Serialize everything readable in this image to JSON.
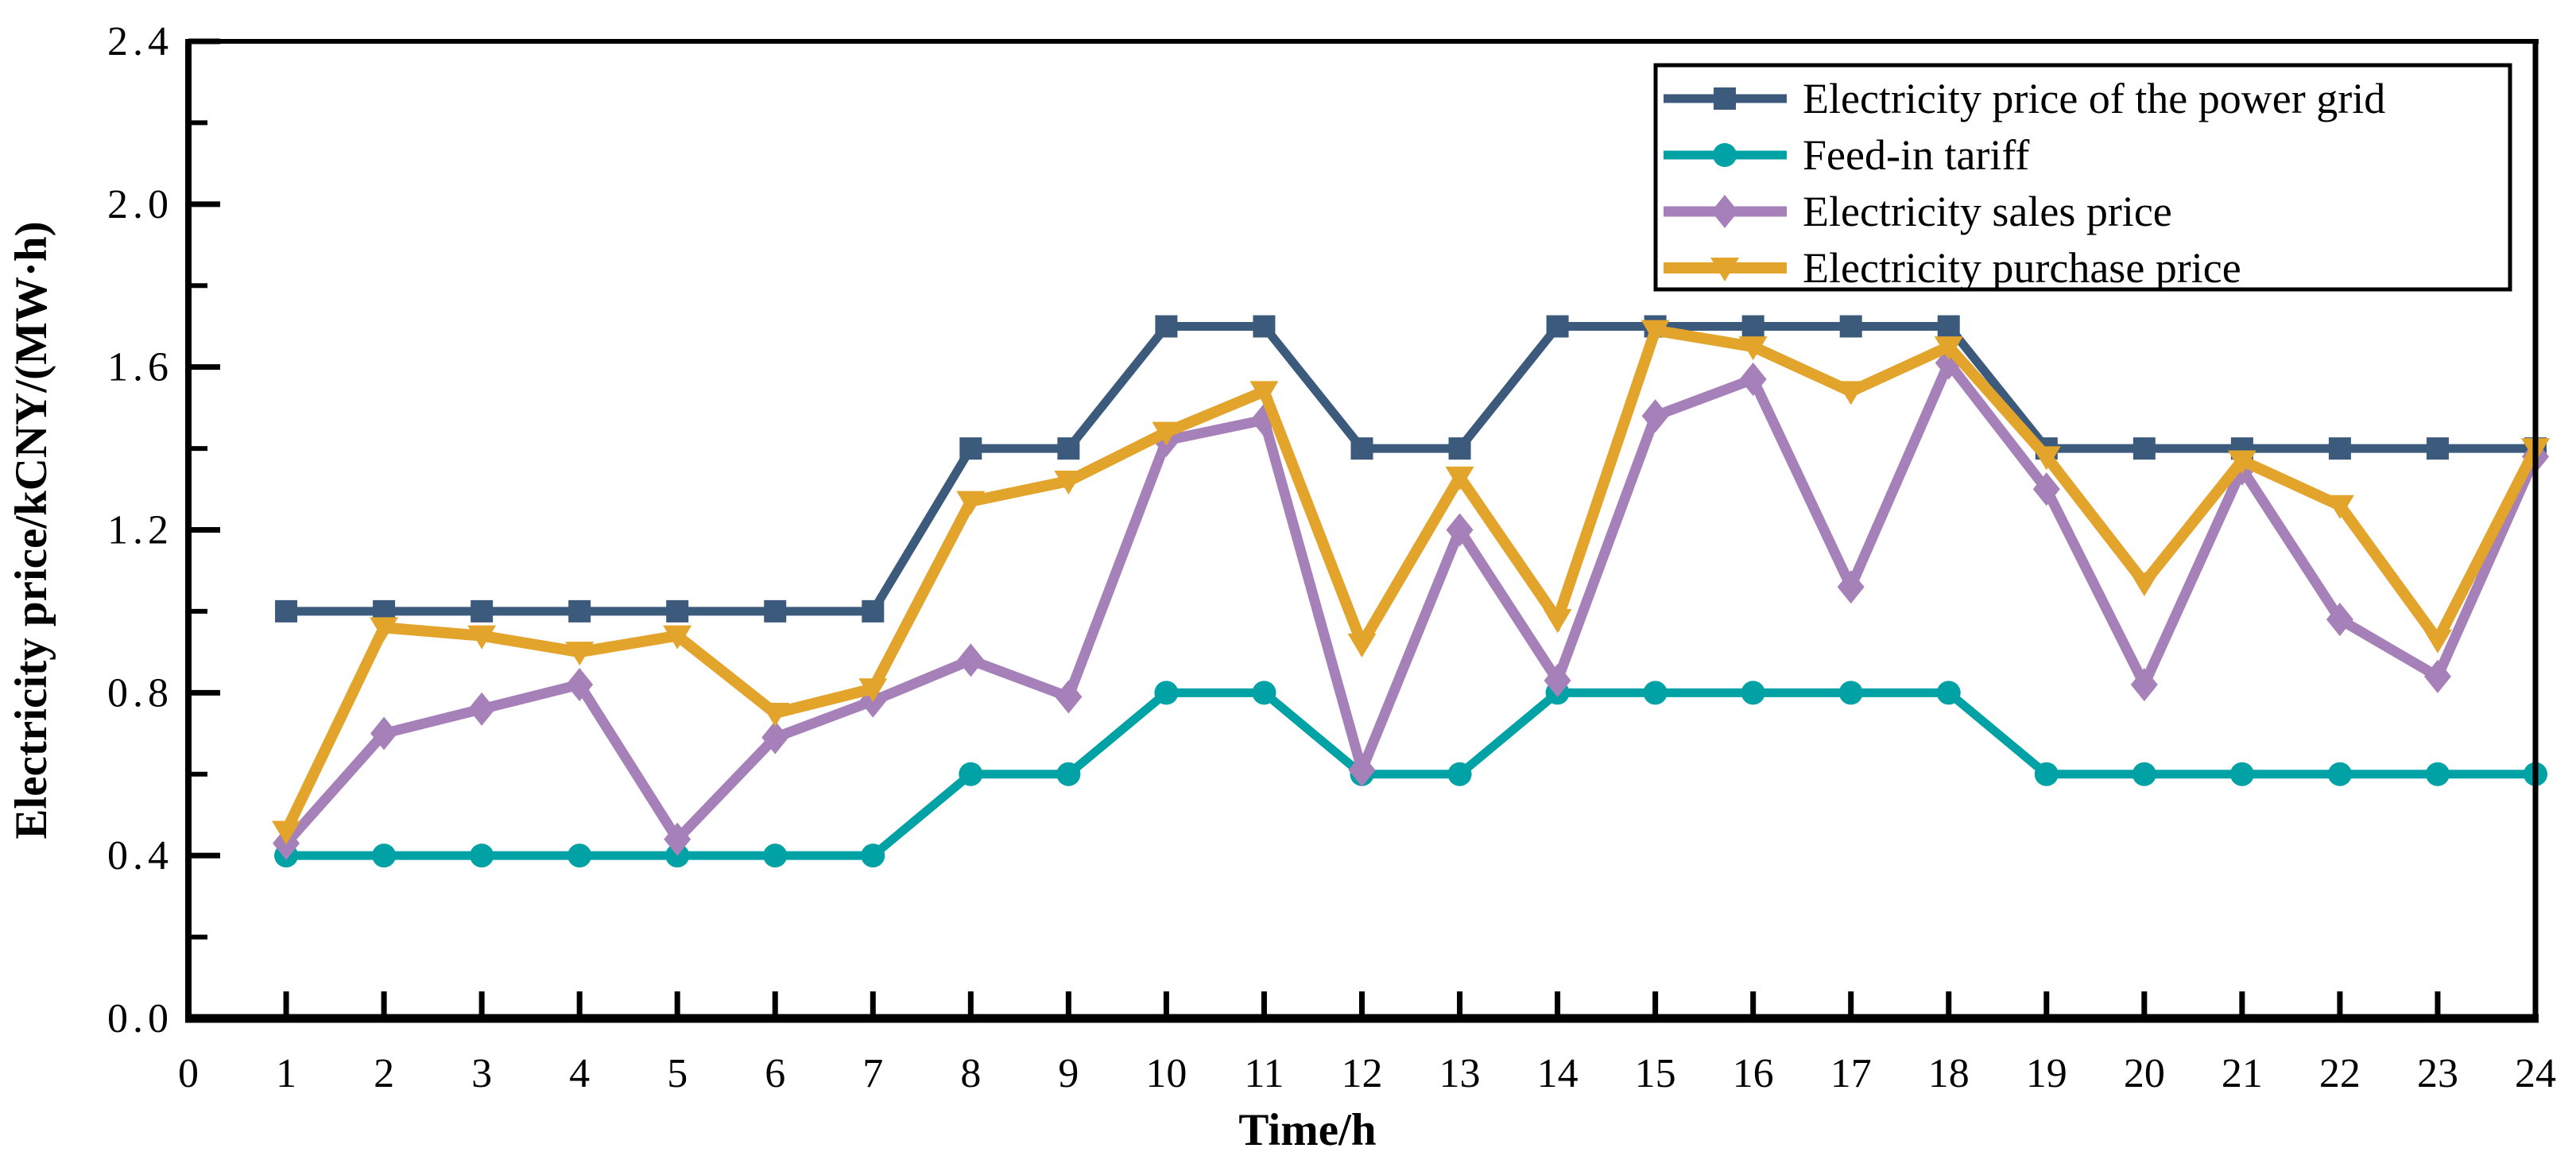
{
  "chart_data": {
    "type": "line",
    "title": "",
    "xlabel": "Time/h",
    "ylabel": "Electricity price/kCNY/(MW·h)",
    "xlim": [
      0,
      24
    ],
    "ylim": [
      0,
      2.4
    ],
    "x_tick_labels": [
      "0",
      "1",
      "2",
      "3",
      "4",
      "5",
      "6",
      "7",
      "8",
      "9",
      "10",
      "11",
      "12",
      "13",
      "14",
      "15",
      "16",
      "17",
      "18",
      "19",
      "20",
      "21",
      "22",
      "23",
      "24"
    ],
    "y_tick_labels": [
      "0.0",
      "0.4",
      "0.8",
      "1.2",
      "1.6",
      "2.0",
      "2.4"
    ],
    "y_minor_step": 0.2,
    "grid": false,
    "legend_position": "top-right",
    "x": [
      1,
      2,
      3,
      4,
      5,
      6,
      7,
      8,
      9,
      10,
      11,
      12,
      13,
      14,
      15,
      16,
      17,
      18,
      19,
      20,
      21,
      22,
      23,
      24
    ],
    "series": [
      {
        "name": "Electricity price of the power grid",
        "color": "#3c5a7c",
        "marker": "square",
        "values": [
          1.0,
          1.0,
          1.0,
          1.0,
          1.0,
          1.0,
          1.0,
          1.4,
          1.4,
          1.7,
          1.7,
          1.4,
          1.4,
          1.7,
          1.7,
          1.7,
          1.7,
          1.7,
          1.4,
          1.4,
          1.4,
          1.4,
          1.4,
          1.4
        ]
      },
      {
        "name": "Feed-in tariff",
        "color": "#00a2a6",
        "marker": "circle",
        "values": [
          0.4,
          0.4,
          0.4,
          0.4,
          0.4,
          0.4,
          0.4,
          0.6,
          0.6,
          0.8,
          0.8,
          0.6,
          0.6,
          0.8,
          0.8,
          0.8,
          0.8,
          0.8,
          0.6,
          0.6,
          0.6,
          0.6,
          0.6,
          0.6
        ]
      },
      {
        "name": "Electricity sales price",
        "color": "#a680b8",
        "marker": "diamond",
        "values": [
          0.43,
          0.7,
          0.76,
          0.82,
          0.44,
          0.69,
          0.78,
          0.88,
          0.79,
          1.42,
          1.47,
          0.61,
          1.2,
          0.83,
          1.48,
          1.57,
          1.06,
          1.61,
          1.3,
          0.82,
          1.35,
          0.98,
          0.84,
          1.38
        ]
      },
      {
        "name": "Electricity purchase price",
        "color": "#e2a42b",
        "marker": "triangle-down",
        "values": [
          0.46,
          0.96,
          0.94,
          0.9,
          0.94,
          0.75,
          0.81,
          1.27,
          1.32,
          1.44,
          1.54,
          0.92,
          1.33,
          0.98,
          1.69,
          1.65,
          1.54,
          1.65,
          1.38,
          1.07,
          1.37,
          1.26,
          0.93,
          1.4
        ]
      }
    ]
  }
}
